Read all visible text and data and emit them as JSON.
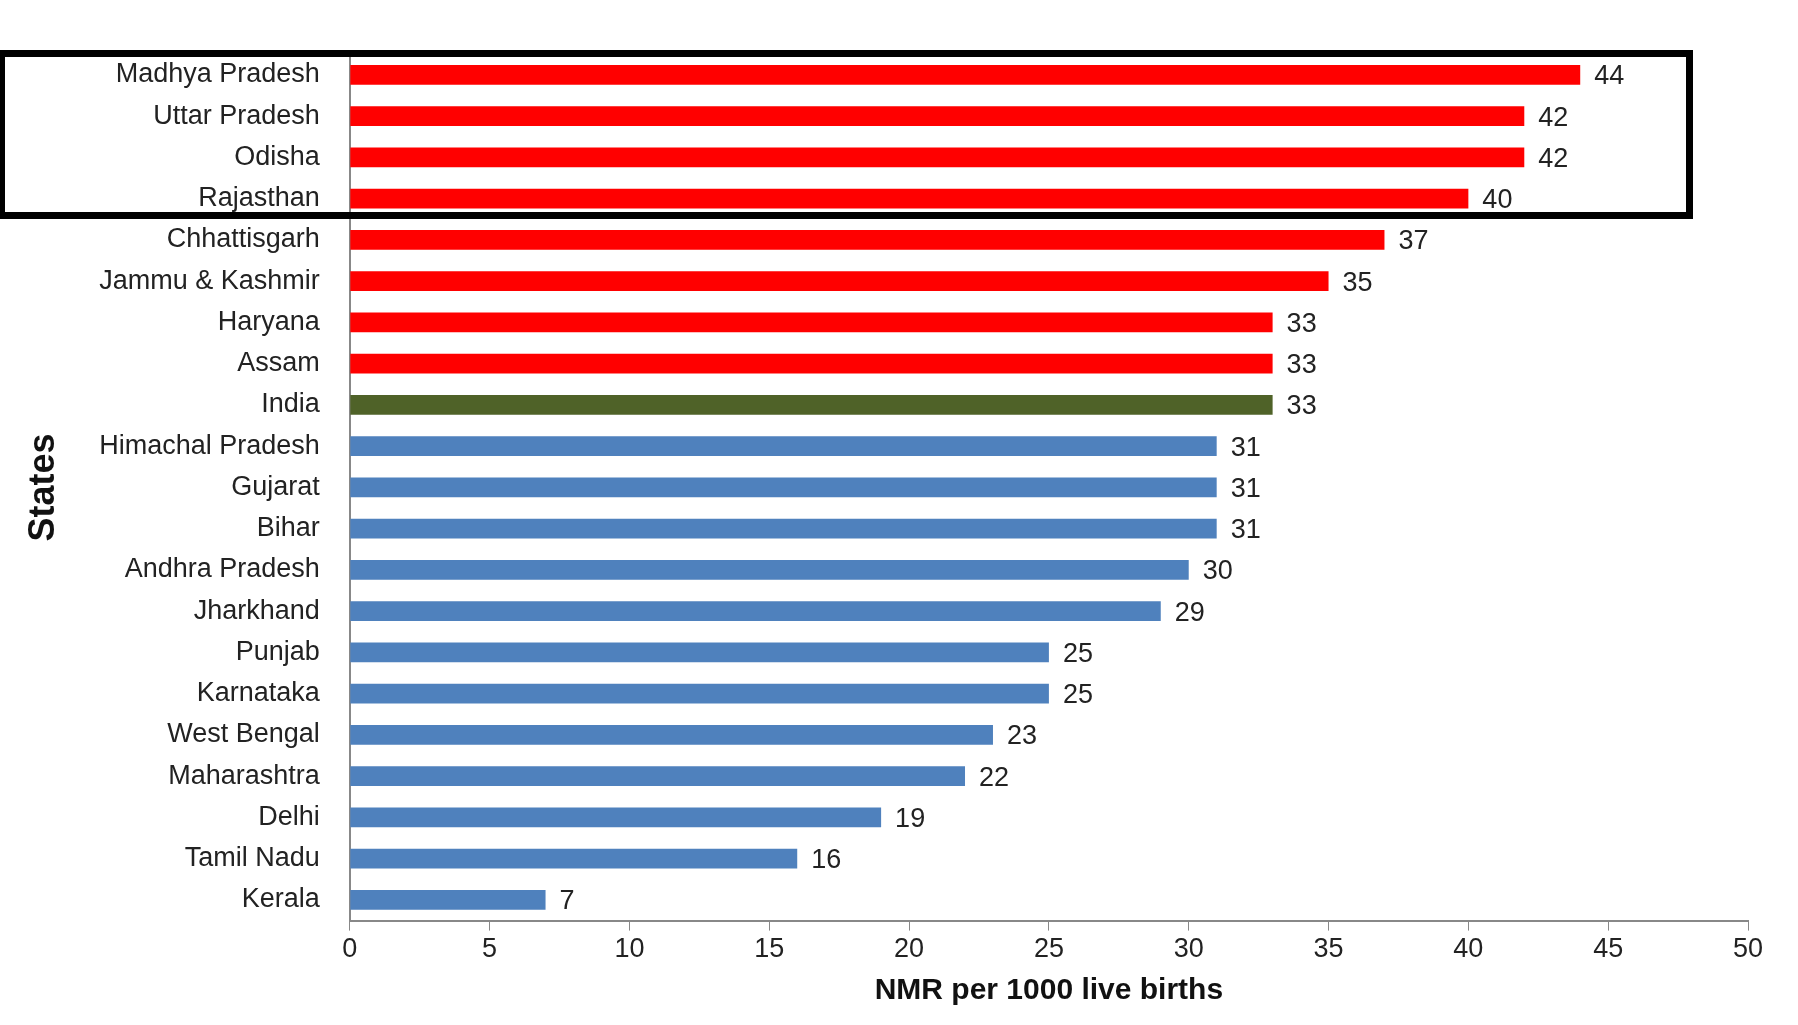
{
  "chart_data": {
    "type": "bar",
    "orientation": "horizontal",
    "xlabel": "NMR per 1000 live births",
    "ylabel": "States",
    "categories": [
      "Madhya Pradesh",
      "Uttar Pradesh",
      "Odisha",
      "Rajasthan",
      "Chhattisgarh",
      "Jammu & Kashmir",
      "Haryana",
      "Assam",
      "India",
      "Himachal Pradesh",
      "Gujarat",
      "Bihar",
      "Andhra Pradesh",
      "Jharkhand",
      "Punjab",
      "Karnataka",
      "West Bengal",
      "Maharashtra",
      "Delhi",
      "Tamil Nadu",
      "Kerala"
    ],
    "values": [
      44,
      42,
      42,
      40,
      37,
      35,
      33,
      33,
      33,
      31,
      31,
      31,
      30,
      29,
      25,
      25,
      23,
      22,
      19,
      16,
      7
    ],
    "colors": [
      "#ff0000",
      "#ff0000",
      "#ff0000",
      "#ff0000",
      "#ff0000",
      "#ff0000",
      "#ff0000",
      "#ff0000",
      "#4f6228",
      "#4f81bd",
      "#4f81bd",
      "#4f81bd",
      "#4f81bd",
      "#4f81bd",
      "#4f81bd",
      "#4f81bd",
      "#4f81bd",
      "#4f81bd",
      "#4f81bd",
      "#4f81bd",
      "#4f81bd"
    ],
    "xlim": [
      0,
      50
    ],
    "xticks": [
      0,
      5,
      10,
      15,
      20,
      25,
      30,
      35,
      40,
      45,
      50
    ],
    "data_labels": true,
    "grid": false,
    "legend": false
  }
}
